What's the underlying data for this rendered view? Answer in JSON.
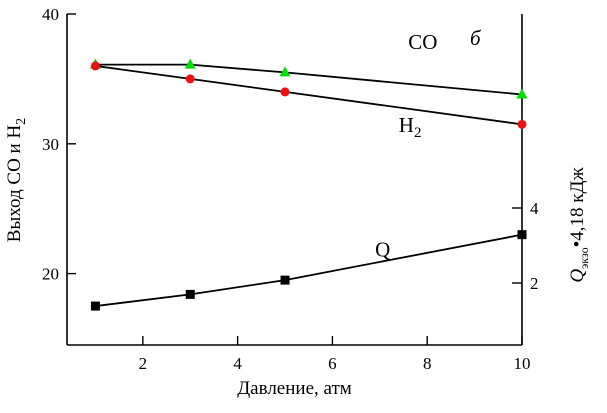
{
  "chart_data": {
    "type": "line",
    "panel_label": "б",
    "xlabel": "Давление, атм",
    "ylabel": "Выход CO и H2",
    "ylabel_parts": {
      "main": "Выход CO и H",
      "sub": "2"
    },
    "y2label": "Q экзо • 4,18 кДж",
    "y2label_parts": {
      "q": "Q",
      "sub": "экзо",
      "rest": "•4,18 кДж"
    },
    "xlim": [
      0.4,
      10
    ],
    "ylim": [
      14.5,
      40
    ],
    "y2lim": [
      0,
      8
    ],
    "x_ticks": [
      {
        "value": 2,
        "label": "2"
      },
      {
        "value": 4,
        "label": "4"
      },
      {
        "value": 6,
        "label": "6"
      },
      {
        "value": 8,
        "label": "8"
      },
      {
        "value": 10,
        "label": "10"
      }
    ],
    "y_ticks": [
      {
        "value": 20,
        "label": "20"
      },
      {
        "value": 30,
        "label": "30"
      },
      {
        "value": 40,
        "label": "40"
      }
    ],
    "y2_ticks": [
      {
        "value": 2,
        "label": "2"
      },
      {
        "value": 4,
        "label": "4"
      }
    ],
    "grid": false,
    "series": [
      {
        "name": "CO",
        "label_parts": {
          "main": "CO",
          "sub": ""
        },
        "axis": "left",
        "marker": "triangle",
        "color": "#00dd00",
        "x": [
          1,
          3,
          5,
          10
        ],
        "y": [
          36.1,
          36.1,
          35.5,
          33.8
        ],
        "label_at": [
          7.6,
          37.3
        ]
      },
      {
        "name": "H2",
        "label_parts": {
          "main": "H",
          "sub": "2"
        },
        "axis": "left",
        "marker": "circle",
        "color": "#ee1111",
        "x": [
          1,
          3,
          5,
          10
        ],
        "y": [
          36.0,
          35.0,
          34.0,
          31.5
        ],
        "label_at": [
          7.4,
          30.9
        ]
      },
      {
        "name": "Q",
        "label_parts": {
          "main": "Q",
          "sub": ""
        },
        "axis": "left",
        "marker": "square",
        "color": "#000000",
        "x": [
          1,
          3,
          5,
          10
        ],
        "y": [
          17.5,
          18.4,
          19.5,
          23.0
        ],
        "label_at": [
          6.9,
          21.3
        ]
      }
    ]
  }
}
